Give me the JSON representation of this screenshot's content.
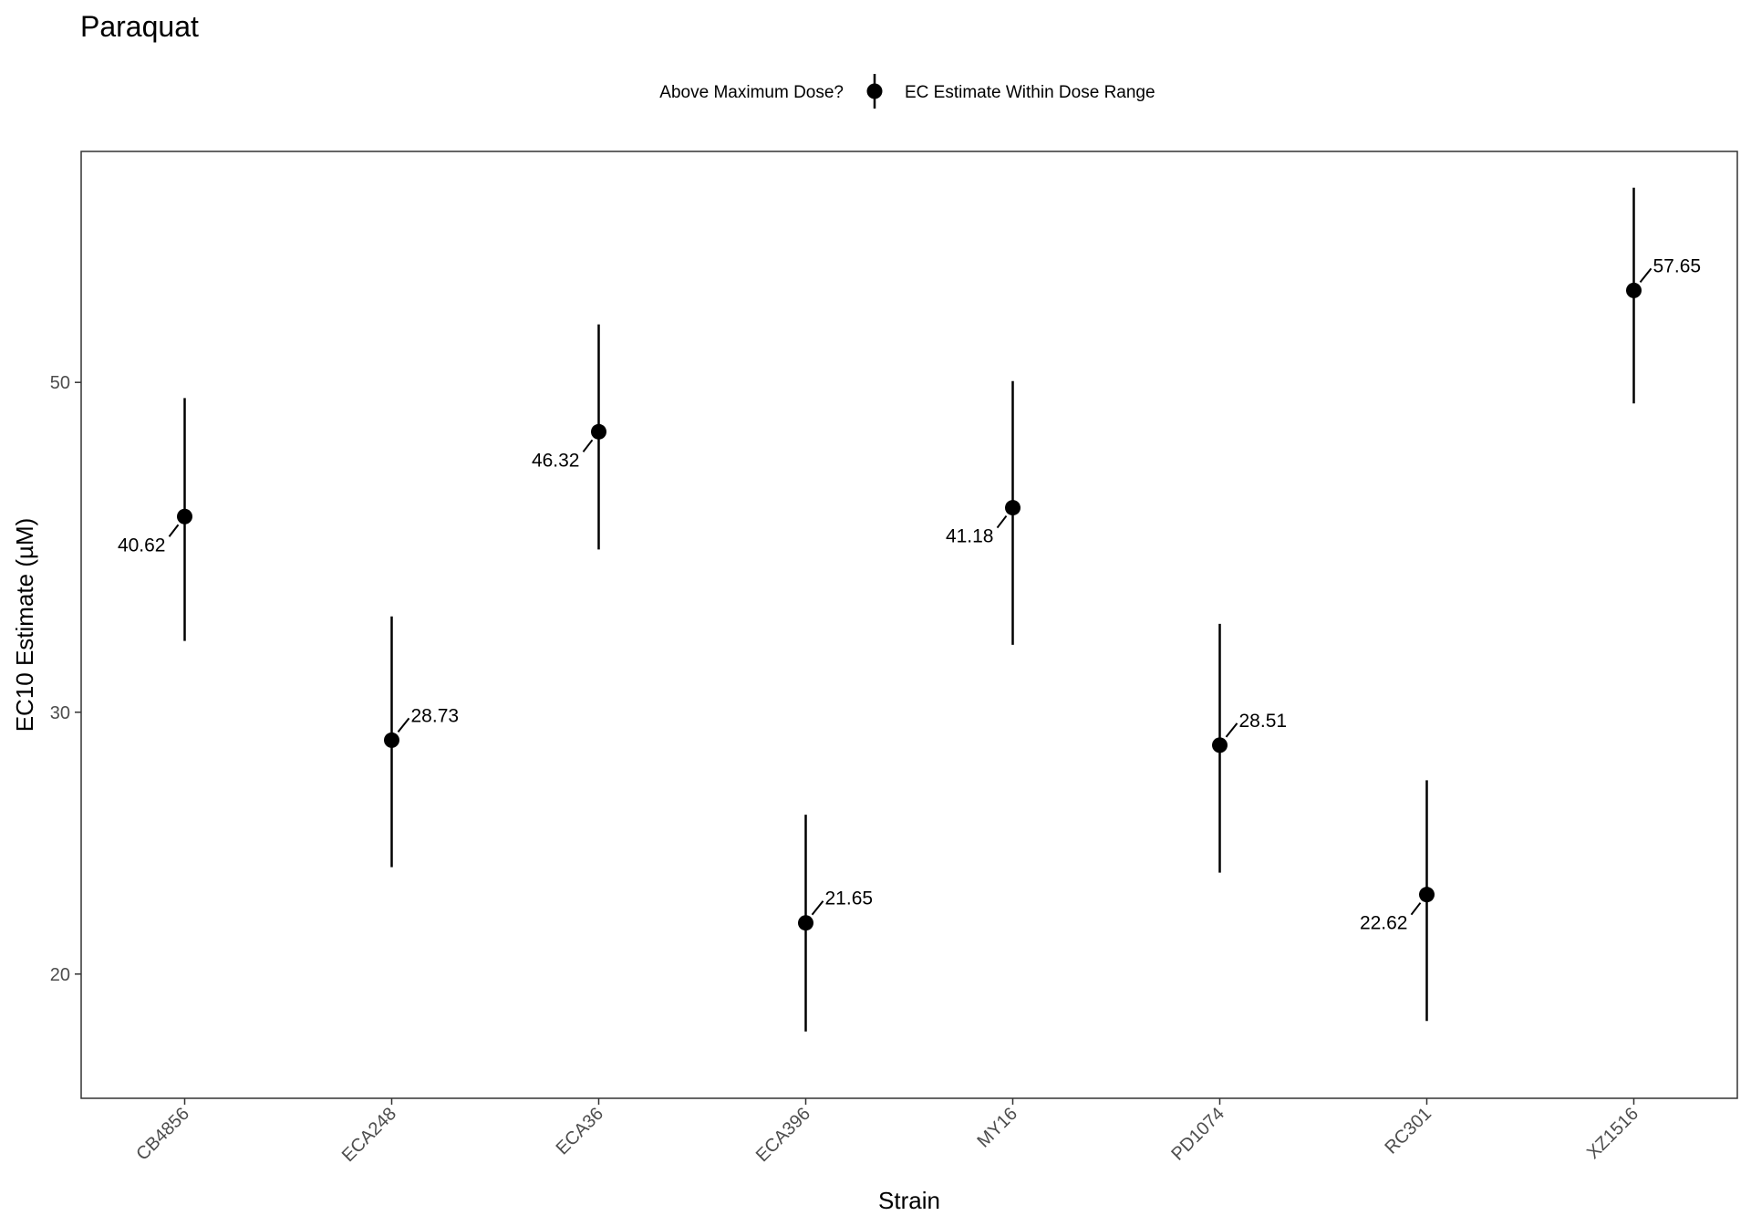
{
  "chart_data": {
    "type": "scatter",
    "title": "Paraquat",
    "xlabel": "Strain",
    "ylabel": "EC10 Estimate (µM)",
    "legend": {
      "title": "Above Maximum Dose?",
      "position": "top",
      "entries": [
        "EC Estimate Within Dose Range"
      ]
    },
    "ylim": [
      16.5,
      71.5
    ],
    "yscale": "log",
    "yticks": [
      20,
      30,
      50
    ],
    "grid": false,
    "categories": [
      "CB4856",
      "ECA248",
      "ECA36",
      "ECA396",
      "MY16",
      "PD1074",
      "RC301",
      "XZ1516"
    ],
    "series": [
      {
        "values": [
          40.62,
          28.73,
          46.32,
          21.65,
          41.18,
          28.51,
          22.62,
          57.65
        ],
        "lower": [
          33.5,
          23.6,
          38.6,
          18.3,
          33.3,
          23.4,
          18.6,
          48.4
        ],
        "upper": [
          48.8,
          34.8,
          54.7,
          25.6,
          50.1,
          34.4,
          27.0,
          67.6
        ],
        "labels": [
          "40.62",
          "28.73",
          "46.32",
          "21.65",
          "41.18",
          "28.51",
          "22.62",
          "57.65"
        ]
      }
    ]
  }
}
